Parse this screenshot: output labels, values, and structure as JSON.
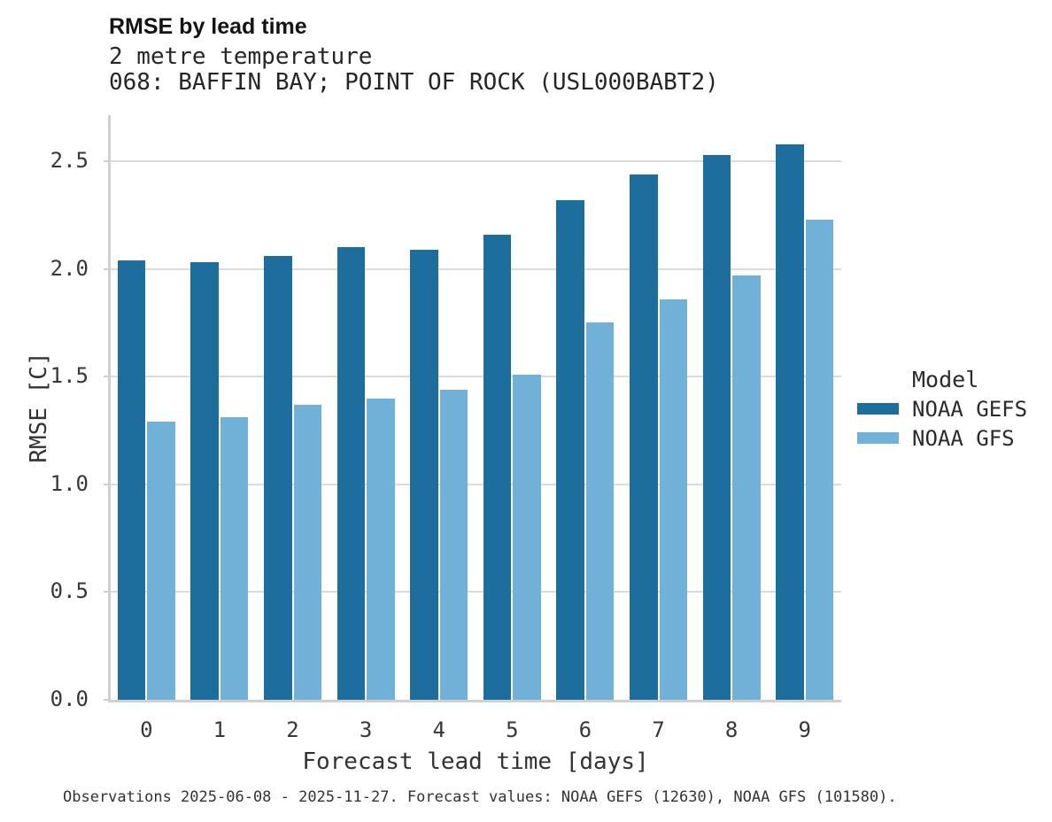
{
  "chart_data": {
    "type": "bar",
    "title": "RMSE by lead time",
    "subtitle1": "2 metre temperature",
    "subtitle2": "068: BAFFIN BAY; POINT OF ROCK (USL000BABT2)",
    "categories": [
      "0",
      "1",
      "2",
      "3",
      "4",
      "5",
      "6",
      "7",
      "8",
      "9"
    ],
    "series": [
      {
        "name": "NOAA GEFS",
        "color": "#1d6e9d",
        "values": [
          2.04,
          2.03,
          2.06,
          2.1,
          2.09,
          2.16,
          2.32,
          2.44,
          2.53,
          2.58
        ]
      },
      {
        "name": "NOAA GFS",
        "color": "#71b1d8",
        "values": [
          1.29,
          1.31,
          1.37,
          1.4,
          1.44,
          1.51,
          1.75,
          1.86,
          1.97,
          2.23
        ]
      }
    ],
    "xlabel": "Forecast lead time [days]",
    "ylabel": "RMSE [C]",
    "ylim": [
      0,
      2.71
    ],
    "yticks": [
      0.0,
      0.5,
      1.0,
      1.5,
      2.0,
      2.5
    ],
    "ytick_labels": [
      "0.0",
      "0.5",
      "1.0",
      "1.5",
      "2.0",
      "2.5"
    ],
    "grid": true,
    "legend_title": "Model",
    "legend_position": "right",
    "footnote": "Observations 2025-06-08 - 2025-11-27. Forecast values: NOAA GEFS (12630), NOAA GFS (101580).",
    "colors": {
      "grid": "#dbdbdb",
      "axis": "#cfcfcf",
      "background": "#ffffff"
    }
  }
}
